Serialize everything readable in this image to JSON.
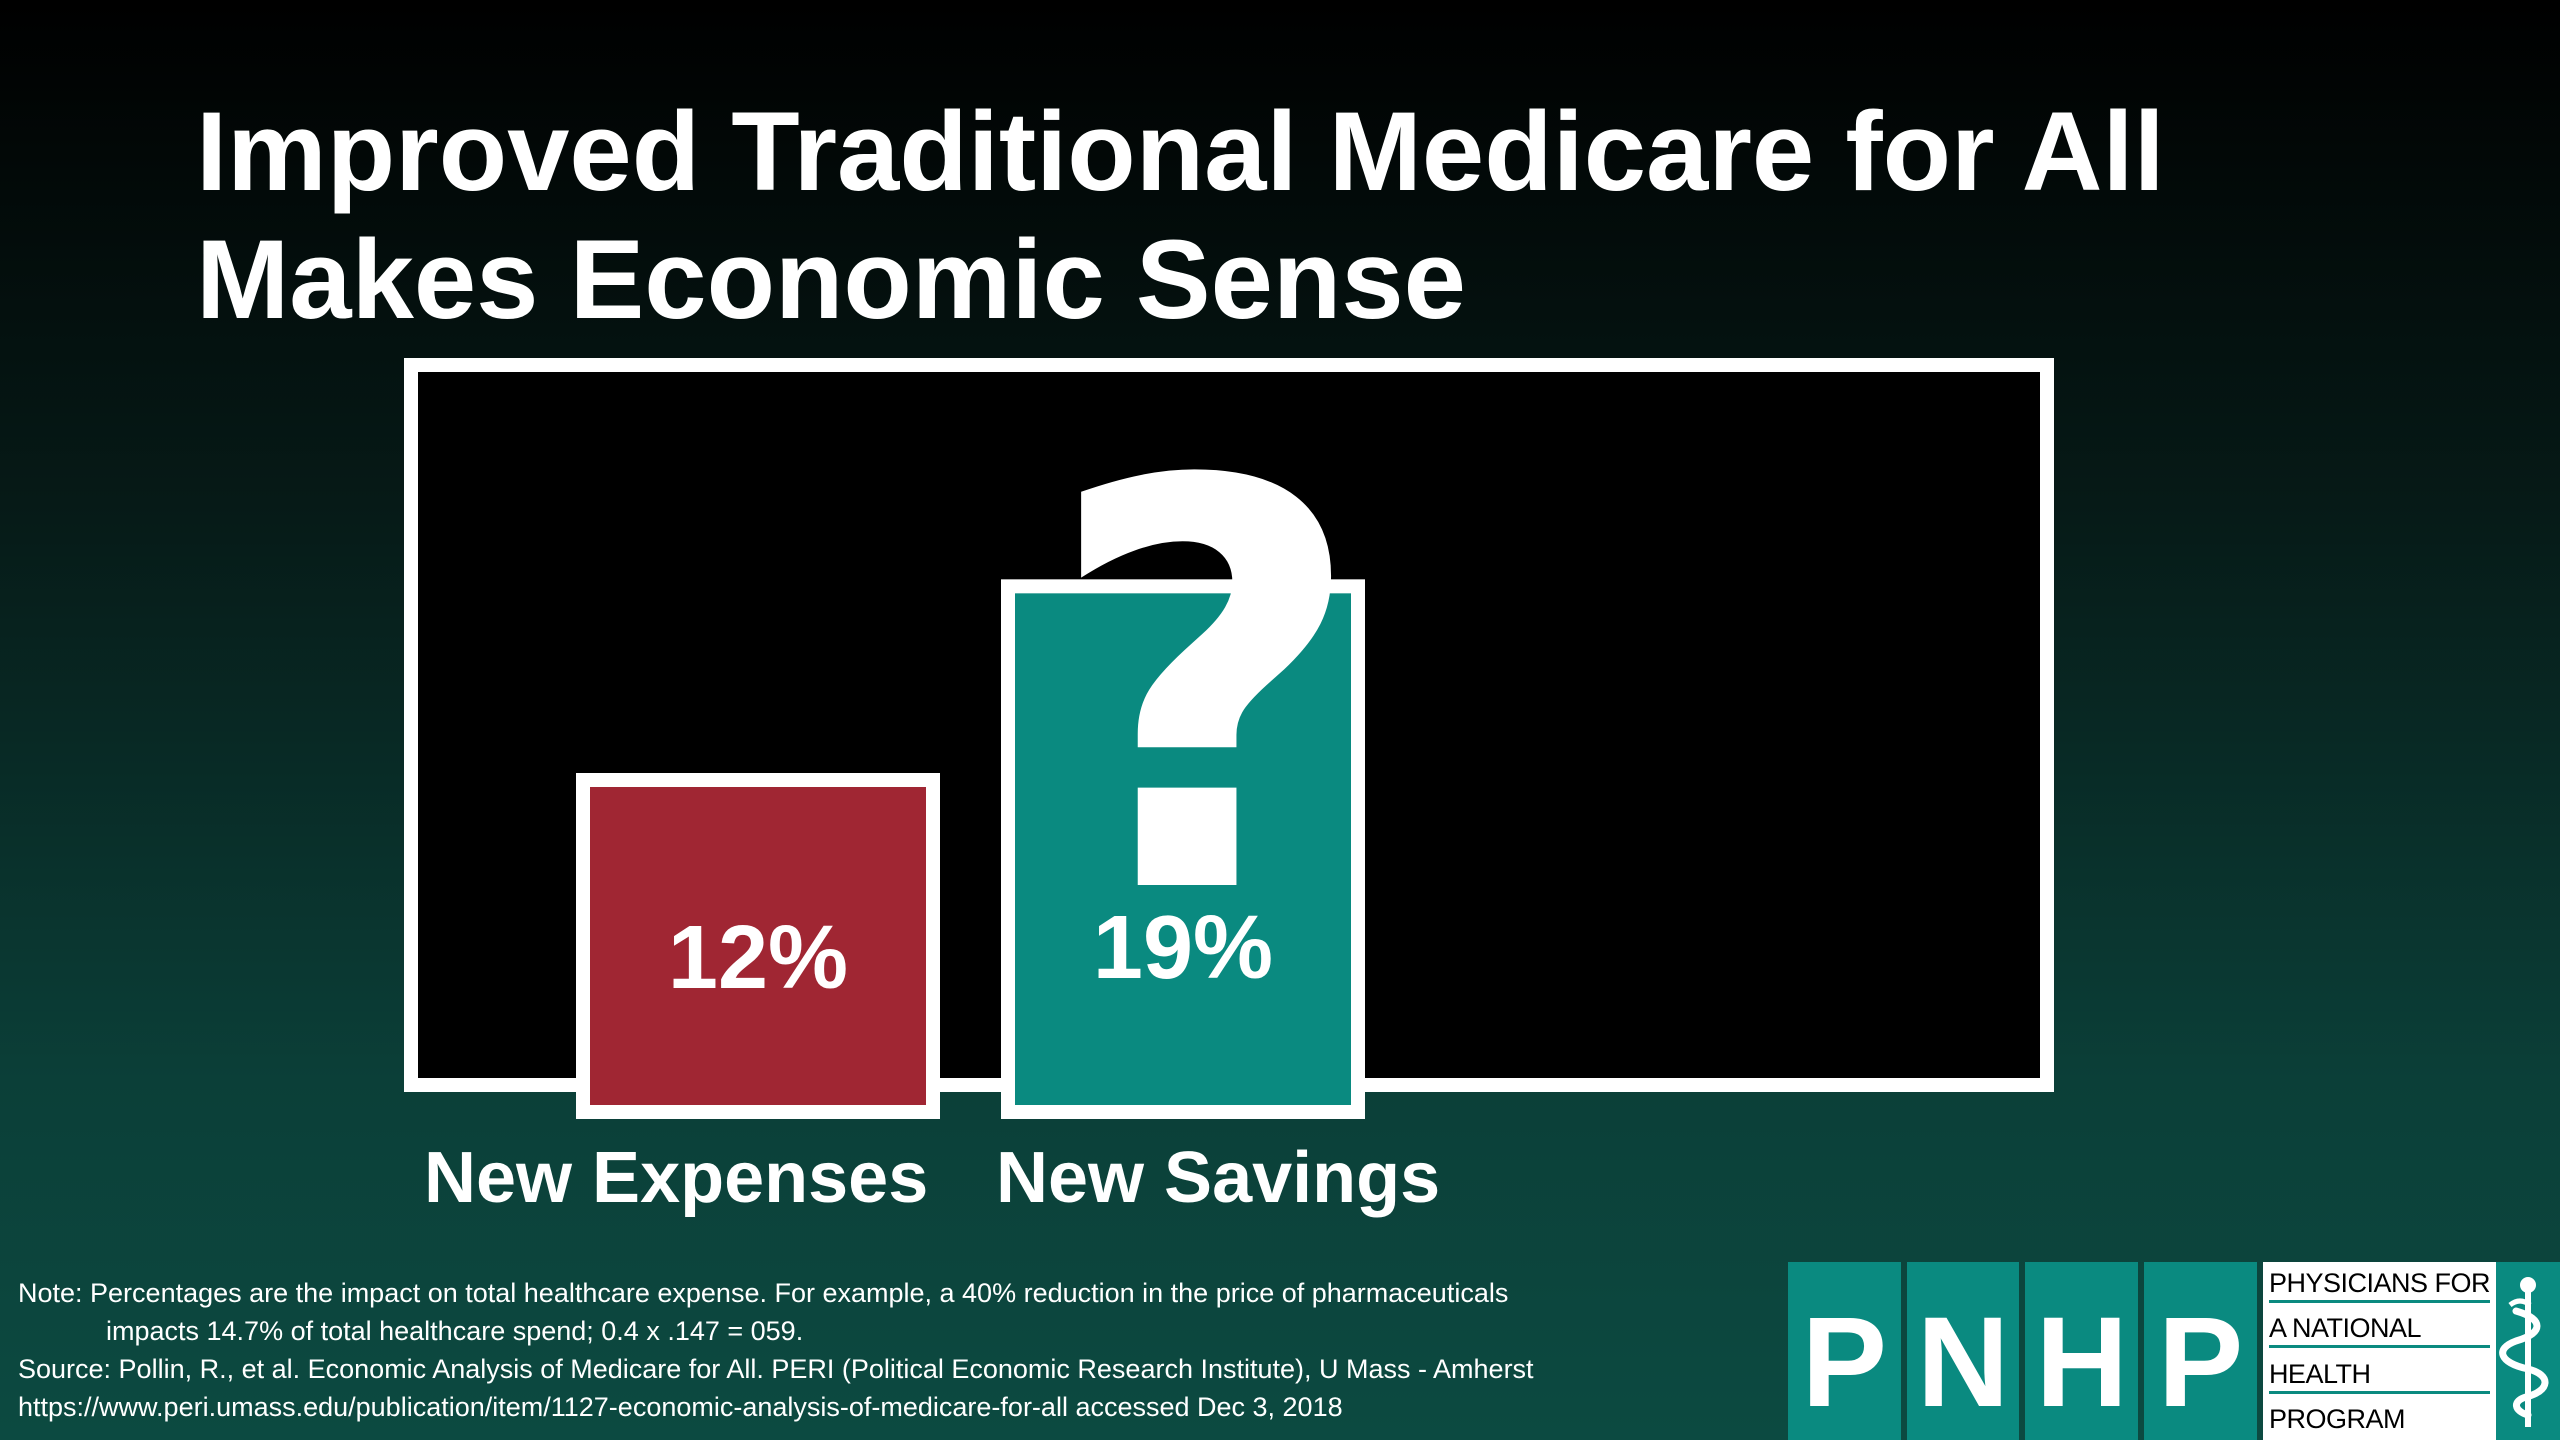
{
  "title": {
    "line1": "Improved Traditional Medicare for All",
    "line2": "Makes Economic Sense"
  },
  "chart_data": {
    "type": "bar",
    "categories": [
      "New Expenses",
      "New Savings"
    ],
    "values": [
      12,
      19
    ],
    "data_labels": [
      "12%",
      "19%"
    ],
    "annotations": [
      "?"
    ],
    "ylim": [
      0,
      27
    ],
    "grid": false,
    "colors": [
      "#a02633",
      "#0a8a80"
    ],
    "frame_color": "#ffffff",
    "plot_background": "#000000"
  },
  "notes": {
    "line1": "Note: Percentages are the impact on total healthcare expense. For example, a 40% reduction in the price of pharmaceuticals",
    "line2": "impacts 14.7% of total healthcare spend; 0.4 x .147 = 059.",
    "line3": "Source: Pollin, R., et al. Economic Analysis of Medicare for All. PERI (Political Economic Research Institute), U Mass - Amherst",
    "line4": "https://www.peri.umass.edu/publication/item/1127-economic-analysis-of-medicare-for-all accessed Dec 3, 2018"
  },
  "logo": {
    "letters": [
      "P",
      "N",
      "H",
      "P"
    ],
    "text_lines": [
      "PHYSICIANS FOR",
      "A NATIONAL",
      "HEALTH",
      "PROGRAM"
    ],
    "emblem_icon": "caduceus-icon",
    "color": "#0a8a80"
  }
}
